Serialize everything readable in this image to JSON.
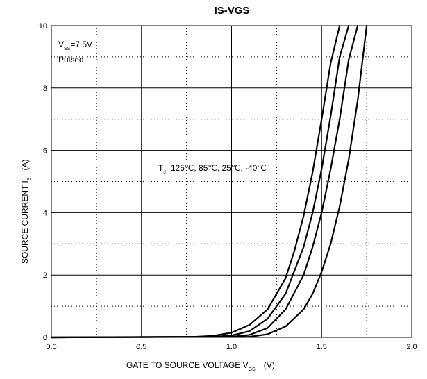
{
  "chart_data": {
    "type": "line",
    "title": "IS-VGS",
    "xlabel": {
      "main": "GATE TO SOURCE VOLTAGE   V",
      "sub": "GS",
      "unit": "(V)"
    },
    "ylabel": {
      "main": "SOURCE CURRENT   I",
      "sub": "S",
      "unit": "(A)"
    },
    "xlim": [
      0,
      2.0
    ],
    "ylim": [
      0,
      10
    ],
    "x_major_ticks": [
      0.0,
      0.5,
      1.0,
      1.5,
      2.0
    ],
    "x_tick_labels": [
      "0.0",
      "0.5",
      "1.0",
      "1.5",
      "2.0"
    ],
    "x_minor_grid": [
      0.25,
      0.75,
      1.25,
      1.75
    ],
    "y_major_ticks": [
      0,
      2,
      4,
      6,
      8,
      10
    ],
    "y_tick_labels": [
      "0",
      "2",
      "4",
      "6",
      "8",
      "10"
    ],
    "y_minor_grid": [
      1,
      3,
      5,
      7,
      9
    ],
    "grid": true,
    "legend": null,
    "annotations": {
      "condition_line1": {
        "main": "V",
        "sub": "SS",
        "rest": "=7.5V"
      },
      "condition_line2": "Pulsed",
      "temps": {
        "main": "T",
        "sub": "J",
        "rest": "=125℃, 85℃, 25℃, -40℃"
      }
    },
    "series": [
      {
        "x": [
          0.0,
          0.8,
          0.9,
          1.0,
          1.1,
          1.2,
          1.3,
          1.35,
          1.4,
          1.45,
          1.5,
          1.55,
          1.6
        ],
        "y": [
          0.0,
          0.02,
          0.05,
          0.15,
          0.4,
          0.9,
          1.9,
          2.8,
          3.9,
          5.3,
          7.0,
          8.8,
          10.0
        ]
      },
      {
        "x": [
          0.0,
          0.9,
          1.0,
          1.1,
          1.2,
          1.3,
          1.4,
          1.45,
          1.5,
          1.55,
          1.6,
          1.65
        ],
        "y": [
          0.0,
          0.02,
          0.06,
          0.2,
          0.6,
          1.4,
          2.9,
          4.0,
          5.4,
          7.1,
          9.0,
          10.0
        ]
      },
      {
        "x": [
          0.0,
          1.0,
          1.1,
          1.2,
          1.3,
          1.4,
          1.45,
          1.5,
          1.55,
          1.6,
          1.65,
          1.7
        ],
        "y": [
          0.0,
          0.02,
          0.08,
          0.3,
          0.9,
          2.0,
          2.9,
          4.0,
          5.4,
          7.0,
          8.9,
          10.0
        ]
      },
      {
        "x": [
          0.0,
          1.1,
          1.2,
          1.3,
          1.4,
          1.45,
          1.5,
          1.55,
          1.6,
          1.65,
          1.7,
          1.75
        ],
        "y": [
          0.0,
          0.02,
          0.1,
          0.35,
          0.9,
          1.4,
          2.1,
          3.0,
          4.2,
          5.7,
          7.6,
          10.0
        ]
      }
    ]
  }
}
